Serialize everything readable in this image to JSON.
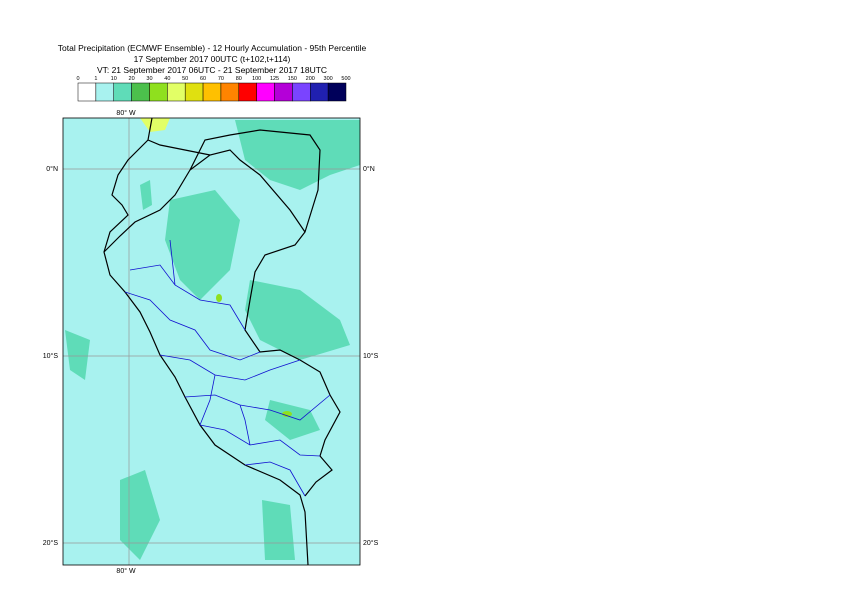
{
  "title_lines": [
    "Total Precipitation (ECMWF Ensemble) - 12 Hourly Accumulation - 95th Percentile",
    "17 September 2017 00UTC (t+102,t+114)",
    "VT: 21 September 2017 06UTC - 21 September 2017 18UTC"
  ],
  "legend": {
    "labels": [
      0,
      1,
      10,
      20,
      30,
      40,
      50,
      60,
      70,
      80,
      100,
      125,
      150,
      200,
      300,
      500
    ],
    "colors": [
      "#ffffff",
      "#a8f2ef",
      "#5fdcb8",
      "#4cc04c",
      "#8fe01e",
      "#e2ff66",
      "#e0e010",
      "#ffc000",
      "#ff8400",
      "#ff0000",
      "#ff00ff",
      "#b400d8",
      "#7a44ff",
      "#2020b0",
      "#00005a"
    ]
  },
  "grid_labels": {
    "lon_top": "80° W",
    "lon_bottom": "80° W",
    "lat_left": [
      "0°N",
      "10°S",
      "20°S"
    ],
    "lat_right": [
      "0°N",
      "10°S",
      "20°S"
    ]
  }
}
